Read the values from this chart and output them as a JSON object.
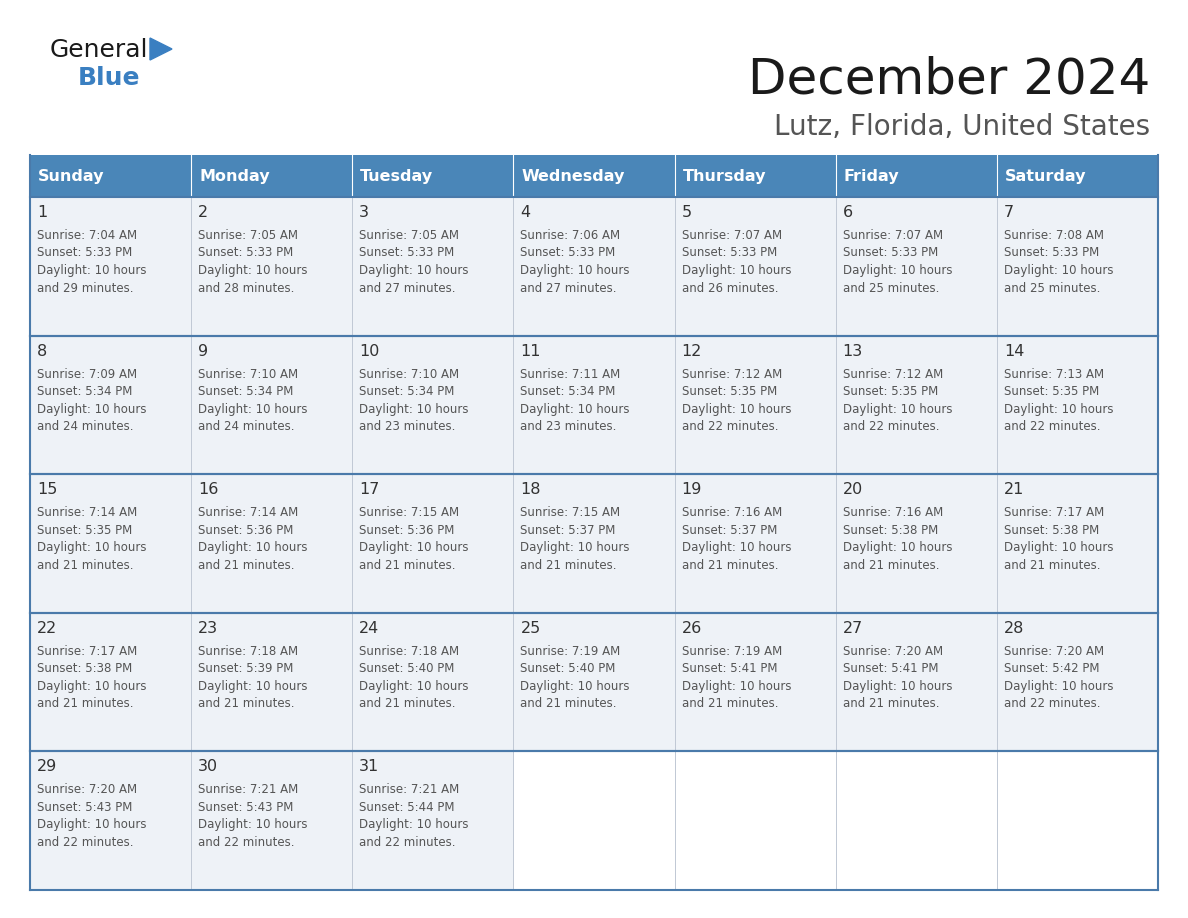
{
  "title": "December 2024",
  "subtitle": "Lutz, Florida, United States",
  "days_of_week": [
    "Sunday",
    "Monday",
    "Tuesday",
    "Wednesday",
    "Thursday",
    "Friday",
    "Saturday"
  ],
  "header_bg": "#4a86b8",
  "header_text_color": "#ffffff",
  "cell_bg_light": "#eef2f7",
  "border_color": "#4a7aaa",
  "day_num_color": "#333333",
  "text_color": "#555555",
  "calendar_data": [
    [
      {
        "day": 1,
        "sunrise": "7:04 AM",
        "sunset": "5:33 PM",
        "daylight_min": "29 minutes."
      },
      {
        "day": 2,
        "sunrise": "7:05 AM",
        "sunset": "5:33 PM",
        "daylight_min": "28 minutes."
      },
      {
        "day": 3,
        "sunrise": "7:05 AM",
        "sunset": "5:33 PM",
        "daylight_min": "27 minutes."
      },
      {
        "day": 4,
        "sunrise": "7:06 AM",
        "sunset": "5:33 PM",
        "daylight_min": "27 minutes."
      },
      {
        "day": 5,
        "sunrise": "7:07 AM",
        "sunset": "5:33 PM",
        "daylight_min": "26 minutes."
      },
      {
        "day": 6,
        "sunrise": "7:07 AM",
        "sunset": "5:33 PM",
        "daylight_min": "25 minutes."
      },
      {
        "day": 7,
        "sunrise": "7:08 AM",
        "sunset": "5:33 PM",
        "daylight_min": "25 minutes."
      }
    ],
    [
      {
        "day": 8,
        "sunrise": "7:09 AM",
        "sunset": "5:34 PM",
        "daylight_min": "24 minutes."
      },
      {
        "day": 9,
        "sunrise": "7:10 AM",
        "sunset": "5:34 PM",
        "daylight_min": "24 minutes."
      },
      {
        "day": 10,
        "sunrise": "7:10 AM",
        "sunset": "5:34 PM",
        "daylight_min": "23 minutes."
      },
      {
        "day": 11,
        "sunrise": "7:11 AM",
        "sunset": "5:34 PM",
        "daylight_min": "23 minutes."
      },
      {
        "day": 12,
        "sunrise": "7:12 AM",
        "sunset": "5:35 PM",
        "daylight_min": "22 minutes."
      },
      {
        "day": 13,
        "sunrise": "7:12 AM",
        "sunset": "5:35 PM",
        "daylight_min": "22 minutes."
      },
      {
        "day": 14,
        "sunrise": "7:13 AM",
        "sunset": "5:35 PM",
        "daylight_min": "22 minutes."
      }
    ],
    [
      {
        "day": 15,
        "sunrise": "7:14 AM",
        "sunset": "5:35 PM",
        "daylight_min": "21 minutes."
      },
      {
        "day": 16,
        "sunrise": "7:14 AM",
        "sunset": "5:36 PM",
        "daylight_min": "21 minutes."
      },
      {
        "day": 17,
        "sunrise": "7:15 AM",
        "sunset": "5:36 PM",
        "daylight_min": "21 minutes."
      },
      {
        "day": 18,
        "sunrise": "7:15 AM",
        "sunset": "5:37 PM",
        "daylight_min": "21 minutes."
      },
      {
        "day": 19,
        "sunrise": "7:16 AM",
        "sunset": "5:37 PM",
        "daylight_min": "21 minutes."
      },
      {
        "day": 20,
        "sunrise": "7:16 AM",
        "sunset": "5:38 PM",
        "daylight_min": "21 minutes."
      },
      {
        "day": 21,
        "sunrise": "7:17 AM",
        "sunset": "5:38 PM",
        "daylight_min": "21 minutes."
      }
    ],
    [
      {
        "day": 22,
        "sunrise": "7:17 AM",
        "sunset": "5:38 PM",
        "daylight_min": "21 minutes."
      },
      {
        "day": 23,
        "sunrise": "7:18 AM",
        "sunset": "5:39 PM",
        "daylight_min": "21 minutes."
      },
      {
        "day": 24,
        "sunrise": "7:18 AM",
        "sunset": "5:40 PM",
        "daylight_min": "21 minutes."
      },
      {
        "day": 25,
        "sunrise": "7:19 AM",
        "sunset": "5:40 PM",
        "daylight_min": "21 minutes."
      },
      {
        "day": 26,
        "sunrise": "7:19 AM",
        "sunset": "5:41 PM",
        "daylight_min": "21 minutes."
      },
      {
        "day": 27,
        "sunrise": "7:20 AM",
        "sunset": "5:41 PM",
        "daylight_min": "21 minutes."
      },
      {
        "day": 28,
        "sunrise": "7:20 AM",
        "sunset": "5:42 PM",
        "daylight_min": "22 minutes."
      }
    ],
    [
      {
        "day": 29,
        "sunrise": "7:20 AM",
        "sunset": "5:43 PM",
        "daylight_min": "22 minutes."
      },
      {
        "day": 30,
        "sunrise": "7:21 AM",
        "sunset": "5:43 PM",
        "daylight_min": "22 minutes."
      },
      {
        "day": 31,
        "sunrise": "7:21 AM",
        "sunset": "5:44 PM",
        "daylight_min": "22 minutes."
      },
      null,
      null,
      null,
      null
    ]
  ],
  "logo_color1": "#1a1a1a",
  "logo_color2": "#3a7fc1",
  "logo_triangle_color": "#3a7fc1"
}
